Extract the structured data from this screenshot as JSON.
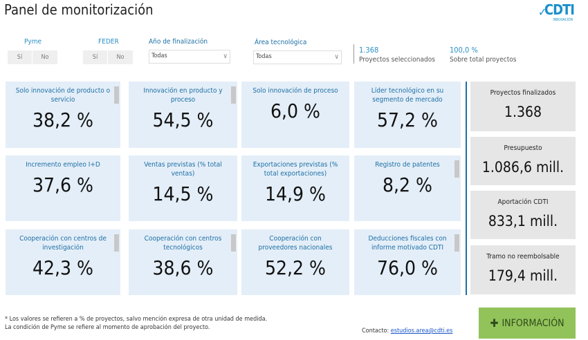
{
  "header": {
    "title": "Panel de monitorización",
    "logo_text": "CDTI",
    "logo_sub": "INNOVACIÓN"
  },
  "filters": {
    "pyme": {
      "label": "Pyme",
      "options": [
        "Sí",
        "No"
      ]
    },
    "feder": {
      "label": "FEDER",
      "options": [
        "Sí",
        "No"
      ]
    },
    "anio": {
      "label": "Año de finalización",
      "value": "Todas"
    },
    "area": {
      "label": "Área tecnológica",
      "value": "Todas"
    }
  },
  "stats": [
    {
      "value": "1.368",
      "label": "Proyectos seleccionados"
    },
    {
      "value": "100,0 %",
      "label": "Sobre total proyectos"
    }
  ],
  "cards": [
    {
      "label": "Solo innovación de producto o servicio",
      "value": "38,2 %"
    },
    {
      "label": "Innovación en producto y proceso",
      "value": "54,5 %"
    },
    {
      "label": "Solo innovación de proceso",
      "value": "6,0 %"
    },
    {
      "label": "Líder tecnológico en su segmento de mercado",
      "value": "57,2 %"
    },
    {
      "label": "Incremento empleo I+D",
      "value": "37,6 %"
    },
    {
      "label": "Ventas previstas (% total ventas)",
      "value": "14,5 %"
    },
    {
      "label": "Exportaciones previstas (% total exportaciones)",
      "value": "14,9 %"
    },
    {
      "label": "Registro de patentes",
      "value": "8,2 %"
    },
    {
      "label": "Cooperación con centros de investigación",
      "value": "42,3 %"
    },
    {
      "label": "Cooperación con centros tecnológicos",
      "value": "38,6 %"
    },
    {
      "label": "Cooperación con proveedores nacionales",
      "value": "52,2 %"
    },
    {
      "label": "Deducciones fiscales con informe motivado CDTI",
      "value": "76,0 %"
    }
  ],
  "summary": [
    {
      "label": "Proyectos finalizados",
      "value": "1.368"
    },
    {
      "label": "Presupuesto",
      "value": "1.086,6 mill."
    },
    {
      "label": "Aportación CDTI",
      "value": "833,1 mill."
    },
    {
      "label": "Tramo no reembolsable",
      "value": "179,4 mill."
    }
  ],
  "footer": {
    "note1": "* Los valores se refieren a % de proyectos, salvo mención expresa de otra unidad de medida.",
    "note2": "La condición de Pyme se refiere al momento de aprobación del proyecto.",
    "contact_label": "Contacto: ",
    "contact_email": "estudios.area@cdti.es",
    "info_button": "INFORMACIÓN"
  },
  "colors": {
    "accent": "#2a8fc4",
    "card_bg": "#e4eef8",
    "summary_bg": "#e6e6e6",
    "info_bg": "#92c35a"
  }
}
